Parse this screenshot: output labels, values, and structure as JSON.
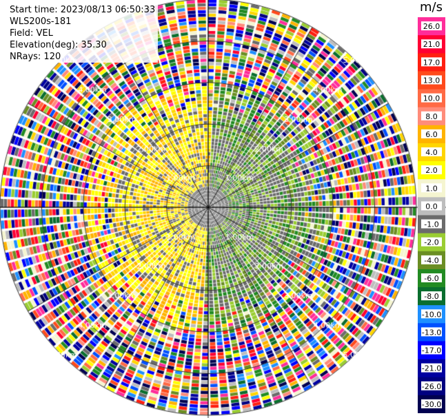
{
  "info": {
    "start_time": "Start time: 2023/08/13 06:50:33",
    "instrument": "WLS200s-181",
    "field": "Field: VEL",
    "elevation": "Elevation(deg): 35.30",
    "nrays": "NRays: 120"
  },
  "colorbar": {
    "unit": "m/s",
    "bins": [
      {
        "label": "26.0",
        "color": "#ff2d9a"
      },
      {
        "label": "21.0",
        "color": "#ff0033"
      },
      {
        "label": "17.0",
        "color": "#ff1f10"
      },
      {
        "label": "13.0",
        "color": "#ff4a1c"
      },
      {
        "label": "10.0",
        "color": "#ff6a45"
      },
      {
        "label": "8.0",
        "color": "#ff8c7a"
      },
      {
        "label": "6.0",
        "color": "#ffb300"
      },
      {
        "label": "4.0",
        "color": "#ffd500"
      },
      {
        "label": "2.0",
        "color": "#ffff00"
      },
      {
        "label": "1.0",
        "color": "#f5f5d0"
      },
      {
        "label": "0.0",
        "color": "#bdbdbd"
      },
      {
        "label": "-1.0",
        "color": "#6b6b6b"
      },
      {
        "label": "-2.0",
        "color": "#9acd32"
      },
      {
        "label": "-4.0",
        "color": "#6b8e23"
      },
      {
        "label": "-6.0",
        "color": "#228b22"
      },
      {
        "label": "-8.0",
        "color": "#0a6e2e"
      },
      {
        "label": "-10.0",
        "color": "#1e90ff"
      },
      {
        "label": "-13.0",
        "color": "#0050ff"
      },
      {
        "label": "-17.0",
        "color": "#0000ff"
      },
      {
        "label": "-21.0",
        "color": "#0000a0"
      },
      {
        "label": "-26.0",
        "color": "#000080"
      },
      {
        "label": "-30.0",
        "color": "#000050"
      }
    ]
  },
  "range_labels": [
    "1.00km",
    "2.00km",
    "3.00km",
    "4.00km",
    "5.00km"
  ],
  "chart_data": {
    "type": "heatmap",
    "subtype": "ppi-polar",
    "field": "VEL",
    "units": "m/s",
    "nrays": 120,
    "range_rings_km": [
      1,
      2,
      3,
      4,
      5
    ],
    "max_range_km": 5.0,
    "spoke_angles_deg": [
      0,
      30,
      60,
      90,
      120,
      150,
      180,
      210,
      240,
      270,
      300,
      330
    ],
    "note_sectors": [
      {
        "dir": "west",
        "dominant_bins": [
          "2.0",
          "4.0",
          "6.0"
        ]
      },
      {
        "dir": "east",
        "dominant_bins": [
          "-2.0",
          "-4.0",
          "-1.0"
        ]
      },
      {
        "dir": "outer",
        "dominant_bins": [
          "mixed"
        ]
      }
    ]
  }
}
